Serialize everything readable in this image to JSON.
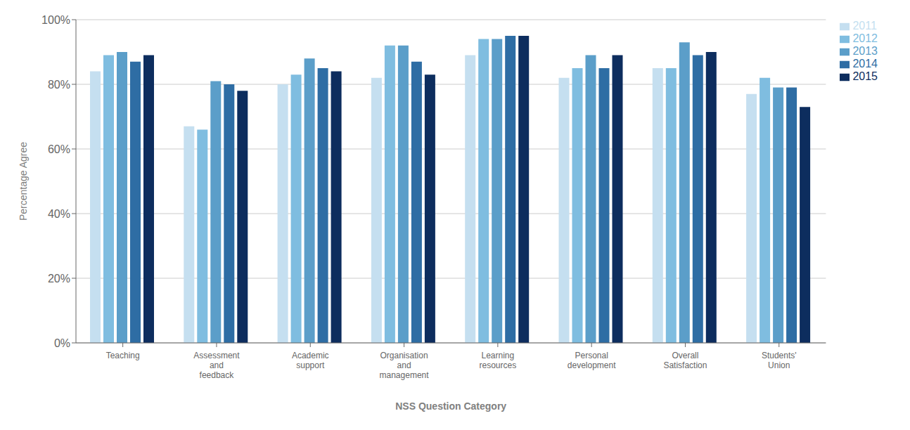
{
  "chart_data": {
    "type": "bar",
    "xlabel": "NSS Question Category",
    "ylabel": "Percentage Agree",
    "categories": [
      "Teaching",
      "Assessment\nand\nfeedback",
      "Academic\nsupport",
      "Organisation\nand\nmanagement",
      "Learning\nresources",
      "Personal\ndevelopment",
      "Overall\nSatisfaction",
      "Students'\nUnion"
    ],
    "series": [
      {
        "name": "2011",
        "color": "#c5dff0",
        "values": [
          84,
          67,
          80,
          82,
          89,
          82,
          85,
          77
        ]
      },
      {
        "name": "2012",
        "color": "#7fbde0",
        "values": [
          89,
          66,
          83,
          92,
          94,
          85,
          85,
          82
        ]
      },
      {
        "name": "2013",
        "color": "#5b9ec9",
        "values": [
          90,
          81,
          88,
          92,
          94,
          89,
          93,
          79
        ]
      },
      {
        "name": "2014",
        "color": "#2e6da4",
        "values": [
          87,
          80,
          85,
          87,
          95,
          85,
          89,
          79
        ]
      },
      {
        "name": "2015",
        "color": "#0d2d5e",
        "values": [
          89,
          78,
          84,
          83,
          95,
          89,
          90,
          73
        ]
      }
    ],
    "ylim": [
      0,
      100
    ],
    "yticks": [
      {
        "value": 0,
        "label": "0%"
      },
      {
        "value": 20,
        "label": "20%"
      },
      {
        "value": 40,
        "label": "40%"
      },
      {
        "value": 60,
        "label": "60%"
      },
      {
        "value": 80,
        "label": "80%"
      },
      {
        "value": 100,
        "label": "100%"
      }
    ],
    "grid": true,
    "legend": "upper right"
  }
}
